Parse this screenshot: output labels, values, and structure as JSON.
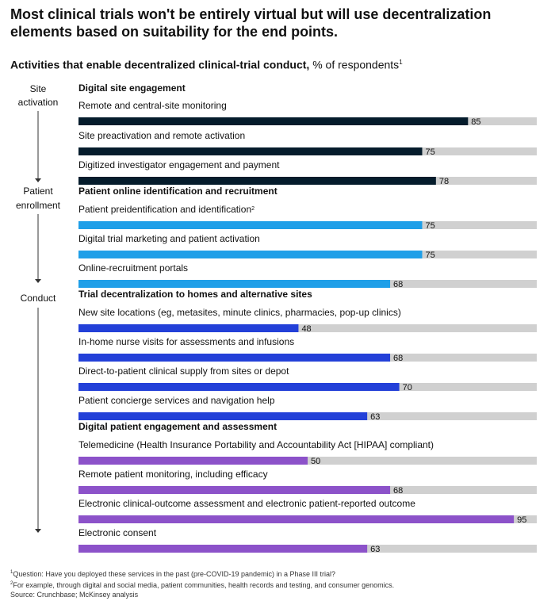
{
  "title": "Most clinical trials won't be entirely virtual but will use decentralization elements based on suitability for the end points.",
  "subtitle": {
    "bold": "Activities that enable decentralized clinical-trial conduct,",
    "rest": " % of respondents",
    "sup": "1"
  },
  "colors": {
    "site_activation": "#051c2c",
    "patient_enrollment": "#1f9fe8",
    "trial_decentralization": "#2340d8",
    "patient_engagement": "#8c52c9",
    "track": "#d0d0d0"
  },
  "chart_data": {
    "type": "bar",
    "orientation": "horizontal",
    "xlim": [
      0,
      100
    ],
    "stages": [
      {
        "label": [
          "Site",
          "activation"
        ]
      },
      {
        "label": [
          "Patient",
          "enrollment"
        ]
      },
      {
        "label": [
          "Conduct"
        ]
      }
    ],
    "groups": [
      {
        "name": "Digital site engagement",
        "color_key": "site_activation",
        "items": [
          {
            "label": "Remote and central-site monitoring",
            "value": 85
          },
          {
            "label": "Site preactivation and remote activation",
            "value": 75
          },
          {
            "label": "Digitized investigator engagement and payment",
            "value": 78
          }
        ]
      },
      {
        "name": "Patient online identification and recruitment",
        "color_key": "patient_enrollment",
        "items": [
          {
            "label": "Patient preidentification and identification",
            "sup": "2",
            "value": 75
          },
          {
            "label": "Digital trial marketing and patient activation",
            "value": 75
          },
          {
            "label": "Online-recruitment portals",
            "value": 68
          }
        ]
      },
      {
        "name": "Trial decentralization to homes and alternative sites",
        "color_key": "trial_decentralization",
        "items": [
          {
            "label": "New site locations (eg, metasites, minute clinics, pharmacies, pop-up clinics)",
            "value": 48
          },
          {
            "label": "In-home nurse visits for assessments and infusions",
            "value": 68
          },
          {
            "label": "Direct-to-patient clinical supply from sites or depot",
            "value": 70
          },
          {
            "label": "Patient concierge services and navigation help",
            "value": 63
          }
        ]
      },
      {
        "name": "Digital patient engagement and assessment",
        "color_key": "patient_engagement",
        "items": [
          {
            "label": "Telemedicine (Health Insurance Portability and Accountability Act [HIPAA] compliant)",
            "value": 50
          },
          {
            "label": "Remote patient monitoring, including efficacy",
            "value": 68
          },
          {
            "label": "Electronic clinical-outcome assessment and electronic patient-reported outcome",
            "value": 95
          },
          {
            "label": "Electronic consent",
            "value": 63
          }
        ]
      }
    ]
  },
  "footnotes": {
    "f1_sup": "1",
    "f1": "Question: Have you deployed these services in the past (pre-COVID-19 pandemic) in a Phase III trial?",
    "f2_sup": "2",
    "f2": "For example, through digital and social media, patient communities, health records and testing, and consumer genomics.",
    "source": "Source: Crunchbase; McKinsey analysis"
  }
}
